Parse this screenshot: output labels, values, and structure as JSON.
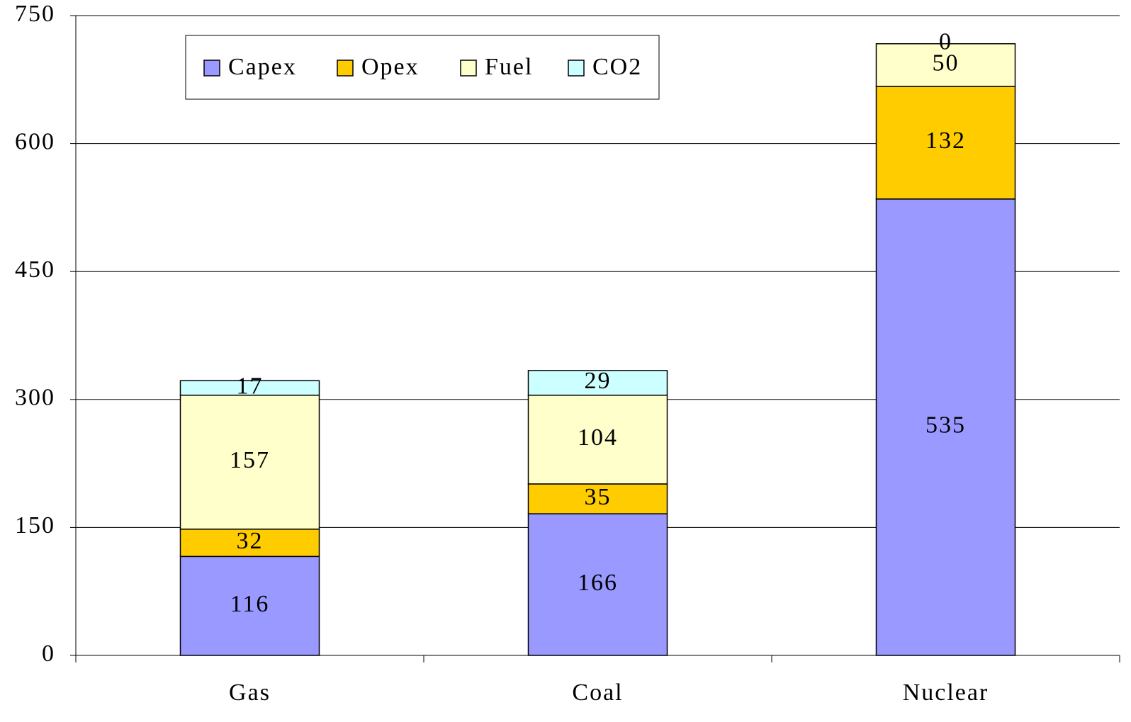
{
  "chart_data": {
    "type": "stacked_bar",
    "categories": [
      "Gas",
      "Coal",
      "Nuclear"
    ],
    "series": [
      {
        "name": "Capex",
        "color": "#9999ff",
        "values": [
          116,
          166,
          535
        ]
      },
      {
        "name": "Opex",
        "color": "#ffcc00",
        "values": [
          32,
          35,
          132
        ]
      },
      {
        "name": "Fuel",
        "color": "#ffffcc",
        "values": [
          157,
          104,
          50
        ]
      },
      {
        "name": "CO2",
        "color": "#ccffff",
        "values": [
          17,
          29,
          0
        ]
      }
    ],
    "ylim": [
      0,
      750
    ],
    "yticks": [
      0,
      150,
      300,
      450,
      600,
      750
    ],
    "grid": true,
    "legend": "top-left"
  }
}
